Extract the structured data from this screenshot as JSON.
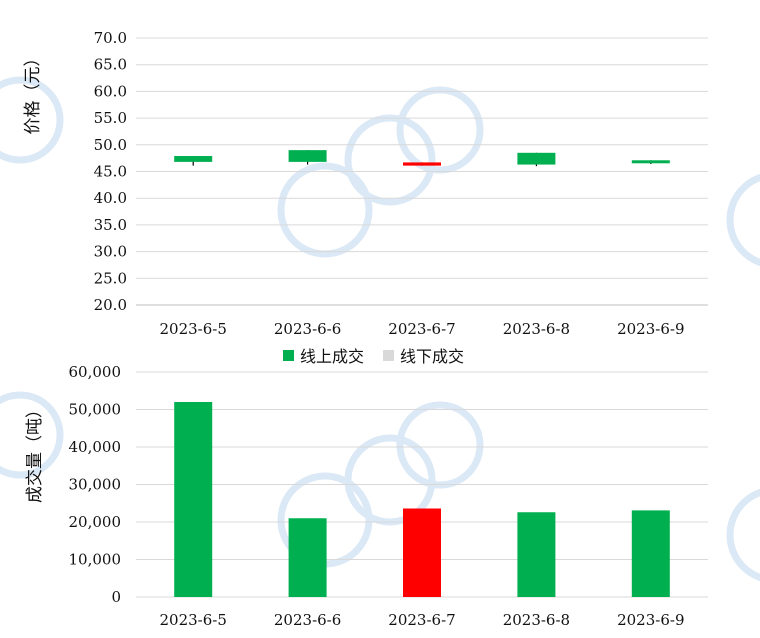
{
  "chart_data": [
    {
      "type": "candlestick",
      "ylabel": "价格（元）",
      "ylim": [
        20,
        70
      ],
      "yticks": [
        "70.0",
        "65.0",
        "60.0",
        "55.0",
        "50.0",
        "45.0",
        "40.0",
        "35.0",
        "30.0",
        "25.0",
        "20.0"
      ],
      "categories": [
        "2023-6-5",
        "2023-6-6",
        "2023-6-7",
        "2023-6-8",
        "2023-6-9"
      ],
      "candles": [
        {
          "open": 46.8,
          "close": 47.9,
          "high": 47.9,
          "low": 46.1,
          "color": "#00b050"
        },
        {
          "open": 46.8,
          "close": 49.0,
          "high": 49.0,
          "low": 46.3,
          "color": "#00b050"
        },
        {
          "open": 46.7,
          "close": 46.1,
          "high": 46.7,
          "low": 46.1,
          "color": "#ff0000"
        },
        {
          "open": 46.3,
          "close": 48.5,
          "high": 48.5,
          "low": 46.0,
          "color": "#00b050"
        },
        {
          "open": 46.6,
          "close": 47.1,
          "high": 47.1,
          "low": 46.4,
          "color": "#00b050"
        }
      ]
    },
    {
      "type": "bar",
      "ylabel": "成交量（吨）",
      "ylim": [
        0,
        60000
      ],
      "yticks": [
        "60,000",
        "50,000",
        "40,000",
        "30,000",
        "20,000",
        "10,000",
        "0"
      ],
      "categories": [
        "2023-6-5",
        "2023-6-6",
        "2023-6-7",
        "2023-6-8",
        "2023-6-9"
      ],
      "legend": [
        {
          "name": "线上成交",
          "color": "#00b050"
        },
        {
          "name": "线下成交",
          "color": "#d9d9d9"
        }
      ],
      "series": [
        {
          "name": "线上成交",
          "values": [
            52000,
            21000,
            23600,
            22600,
            23100
          ],
          "colors": [
            "#00b050",
            "#00b050",
            "#ff0000",
            "#00b050",
            "#00b050"
          ]
        }
      ]
    }
  ]
}
